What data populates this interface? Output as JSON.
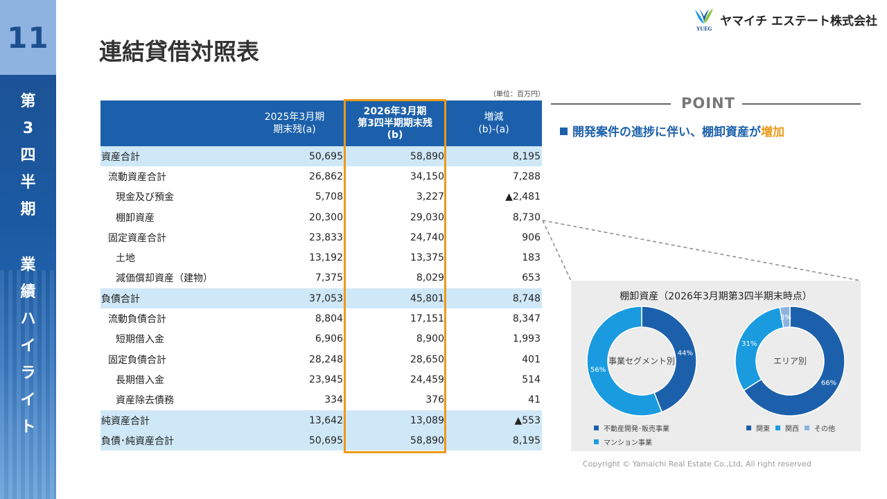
{
  "sidebar": {
    "page_number": "11",
    "section_chars": [
      "第",
      "3",
      "四",
      "半",
      "期"
    ],
    "topic_chars": [
      "業",
      "績",
      "ハ",
      "イ",
      "ラ",
      "イ",
      "ト"
    ]
  },
  "header": {
    "title": "連結貸借対照表",
    "company": "ヤマイチ エステート株式会社",
    "logo_mark_text": "YUEG"
  },
  "table": {
    "unit": "（単位：百万円）",
    "headers": {
      "col_a_line1": "2025年3月期",
      "col_a_line2": "期末残(a)",
      "col_b_line1": "2026年3月期",
      "col_b_line2": "第3四半期期末残",
      "col_b_line3": "(b)",
      "col_c_line1": "増減",
      "col_c_line2": "(b)-(a)"
    },
    "rows": [
      {
        "label": "資産合計",
        "a": "50,695",
        "b": "58,890",
        "c": "8,195"
      },
      {
        "label": "流動資産合計",
        "a": "26,862",
        "b": "34,150",
        "c": "7,288"
      },
      {
        "label": "現金及び預金",
        "a": "5,708",
        "b": "3,227",
        "c": "▲2,481"
      },
      {
        "label": "棚卸資産",
        "a": "20,300",
        "b": "29,030",
        "c": "8,730"
      },
      {
        "label": "固定資産合計",
        "a": "23,833",
        "b": "24,740",
        "c": "906"
      },
      {
        "label": "土地",
        "a": "13,192",
        "b": "13,375",
        "c": "183"
      },
      {
        "label": "減価償却資産（建物）",
        "a": "7,375",
        "b": "8,029",
        "c": "653"
      },
      {
        "label": "負債合計",
        "a": "37,053",
        "b": "45,801",
        "c": "8,748"
      },
      {
        "label": "流動負債合計",
        "a": "8,804",
        "b": "17,151",
        "c": "8,347"
      },
      {
        "label": "短期借入金",
        "a": "6,906",
        "b": "8,900",
        "c": "1,993"
      },
      {
        "label": "固定負債合計",
        "a": "28,248",
        "b": "28,650",
        "c": "401"
      },
      {
        "label": "長期借入金",
        "a": "23,945",
        "b": "24,459",
        "c": "514"
      },
      {
        "label": "資産除去債務",
        "a": "334",
        "b": "376",
        "c": "41"
      },
      {
        "label": "純資産合計",
        "a": "13,642",
        "b": "13,089",
        "c": "▲553"
      },
      {
        "label": "負債･純資産合計",
        "a": "50,695",
        "b": "58,890",
        "c": "8,195"
      }
    ]
  },
  "point": {
    "heading": "POINT",
    "text_main": "開発案件の進捗に伴い、棚卸資産が",
    "text_accent": "増加"
  },
  "inventory_panel": {
    "title": "棚卸資産（2026年3月期第3四半期末時点）",
    "chart_data": [
      {
        "type": "pie",
        "center_label": "事業セグメント別",
        "categories": [
          "不動産開発･販売事業",
          "マンション事業"
        ],
        "values": [
          44,
          56
        ],
        "value_labels": [
          "44%",
          "56%"
        ],
        "colors": [
          "#1c60ab",
          "#1a9be0"
        ]
      },
      {
        "type": "pie",
        "center_label": "エリア別",
        "categories": [
          "関東",
          "関西",
          "その他"
        ],
        "values": [
          66,
          31,
          3
        ],
        "value_labels": [
          "66%",
          "31%",
          "3%"
        ],
        "colors": [
          "#1c60ab",
          "#1a9be0",
          "#8fb3e1"
        ]
      }
    ]
  },
  "footer": {
    "copyright": "Copyright © Yamaichi Real Estate Co.,Ltd, All right reserved"
  },
  "colors": {
    "brand_blue": "#1c60ab",
    "light_blue": "#1a9be0",
    "accent_orange": "#ec9a1a",
    "total_row_bg": "#cfe8f7"
  }
}
